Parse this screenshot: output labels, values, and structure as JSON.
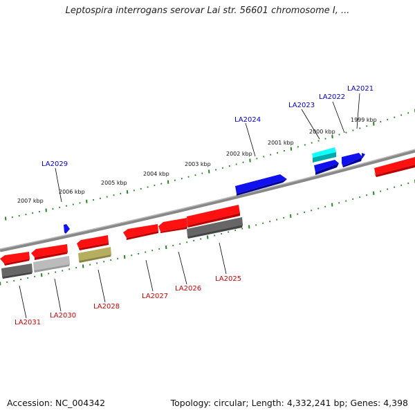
{
  "title": "Leptospira interrogans serovar Lai str. 56601 chromosome I, ...",
  "footer": {
    "accession": "Accession: NC_004342",
    "summary": "Topology: circular; Length: 4,332,241 bp; Genes: 4,398"
  },
  "colors": {
    "backbone": "#777777",
    "ticks": "#228822",
    "forward_label": "#0000cc",
    "reverse_label": "#cc0000",
    "forward_gene": "#0a0adb",
    "reverse_gene": "#ee1111",
    "cyan_gene": "#00dddd",
    "gray_gene": "#555555",
    "lightgray_gene": "#aaaaaa",
    "olive_gene": "#a8a04a"
  },
  "kbp_labels": [
    "1999 kbp",
    "2000 kbp",
    "2001 kbp",
    "2002 kbp",
    "2003 kbp",
    "2004 kbp",
    "2005 kbp",
    "2006 kbp",
    "2007 kbp"
  ],
  "forward_genes": [
    "LA2021",
    "LA2022",
    "LA2023",
    "LA2024",
    "LA2029"
  ],
  "reverse_genes": [
    "LA2025",
    "LA2026",
    "LA2027",
    "LA2028",
    "LA2030",
    "LA2031"
  ]
}
